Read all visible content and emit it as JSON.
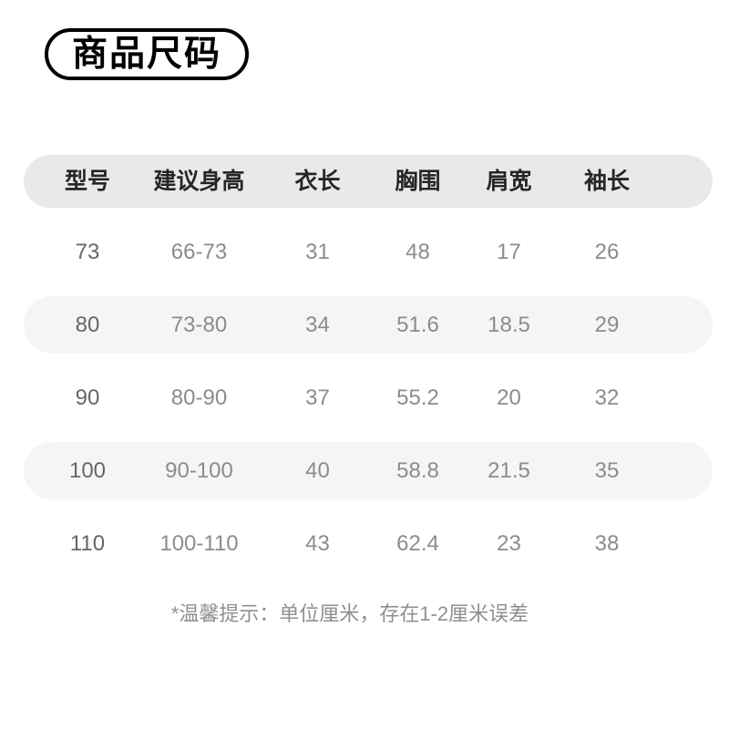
{
  "badge": {
    "label": "商品尺码"
  },
  "size_table": {
    "headers": [
      "型号",
      "建议身高",
      "衣长",
      "胸围",
      "肩宽",
      "袖长"
    ],
    "rows": [
      [
        "73",
        "66-73",
        "31",
        "48",
        "17",
        "26"
      ],
      [
        "80",
        "73-80",
        "34",
        "51.6",
        "18.5",
        "29"
      ],
      [
        "90",
        "80-90",
        "37",
        "55.2",
        "20",
        "32"
      ],
      [
        "100",
        "90-100",
        "40",
        "58.8",
        "21.5",
        "35"
      ],
      [
        "110",
        "100-110",
        "43",
        "62.4",
        "23",
        "38"
      ]
    ]
  },
  "footnote": {
    "text": "*温馨提示：单位厘米，存在1-2厘米误差"
  },
  "colors": {
    "page_background": "#ffffff",
    "badge_border": "#000000",
    "header_background": "#e9e9e9",
    "stripe_background": "#f5f5f6",
    "header_text": "#262626",
    "size_column_text": "#666666",
    "value_text": "#8c8c8c",
    "footnote_text": "#8f8f8f"
  }
}
